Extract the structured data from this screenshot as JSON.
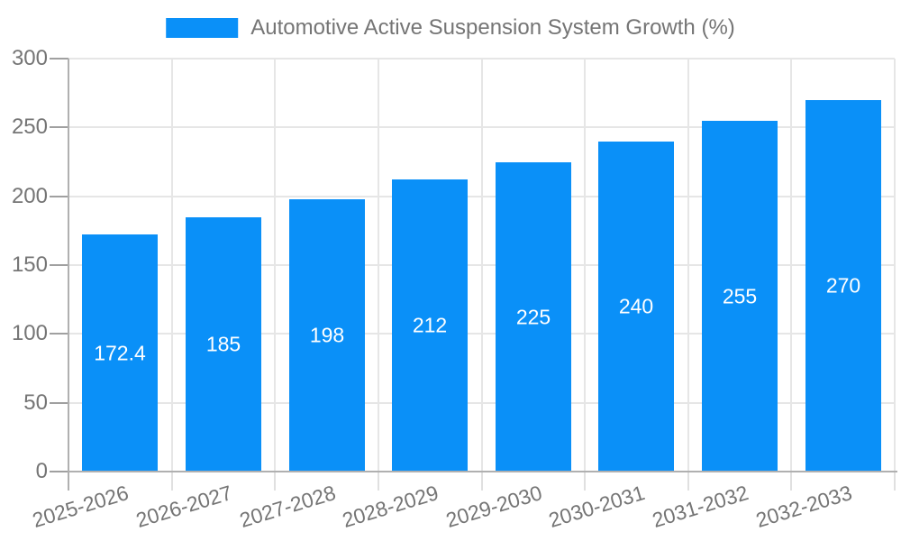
{
  "chart_data": {
    "type": "bar",
    "title": "Automotive Active Suspension System Growth (%)",
    "legend": {
      "position": "top",
      "label": "Automotive Active Suspension System Growth (%)"
    },
    "categories": [
      "2025-2026",
      "2026-2027",
      "2027-2028",
      "2028-2029",
      "2029-2030",
      "2030-2031",
      "2031-2032",
      "2032-2033"
    ],
    "values": [
      172.4,
      185,
      198,
      212,
      225,
      240,
      255,
      270
    ],
    "value_labels": [
      "172.4",
      "185",
      "198",
      "212",
      "225",
      "240",
      "255",
      "270"
    ],
    "xlabel": "",
    "ylabel": "",
    "ylim": [
      0,
      300
    ],
    "yticks": [
      0,
      50,
      100,
      150,
      200,
      250,
      300
    ],
    "grid": true,
    "x_label_rotation_deg": -17,
    "colors": {
      "bar": "#0a90f8",
      "axis_text": "#757575",
      "value_label_text": "#ffffff",
      "grid_line": "#e6e6e6",
      "axis_line": "#b0b0b0",
      "y_tick": "#a0a0a0",
      "x_tick": "#e0e0e0",
      "background": "#ffffff"
    }
  }
}
